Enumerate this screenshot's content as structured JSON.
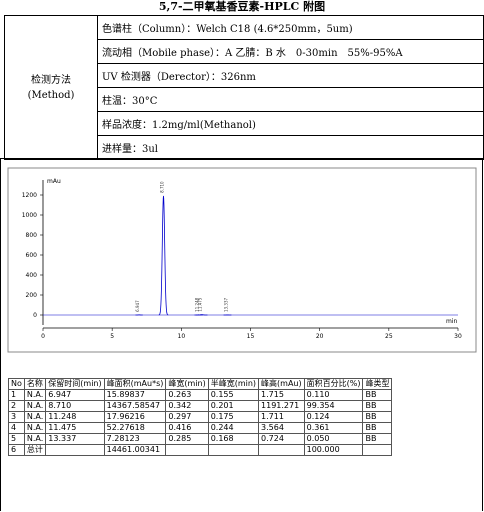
{
  "header": {
    "title": "5,7-二甲氧基香豆素-HPLC 附图"
  },
  "method": {
    "label": "检测方法",
    "label_en": "(Method)",
    "rows": [
      "色谱柱（Column）：Welch C18 (4.6*250mm，5um)",
      "流动相（Mobile phase）：A 乙腈：B 水　0-30min　55%-95%A",
      "UV 检测器（Derector）：326nm",
      "柱温：30°C",
      "样品浓度：1.2mg/ml(Methanol)",
      "进样量：3ul"
    ]
  },
  "chromatogram": {
    "type": "line",
    "ylabel": "mAu",
    "xlabel": "min",
    "x": [
      6.947,
      8.71,
      11.248,
      11.475,
      13.337
    ],
    "x_labels": [
      "6.947",
      "8.710",
      "11.248",
      "11.475",
      "13.337"
    ],
    "values": [
      1.715,
      1191.271,
      1.711,
      3.564,
      0.724
    ],
    "half_widths": [
      0.155,
      0.201,
      0.175,
      0.244,
      0.168
    ],
    "color": "#0000cc",
    "xlim": [
      0,
      30
    ],
    "xticks": [
      0,
      5,
      10,
      15,
      20,
      25,
      30
    ],
    "ylim": [
      -100,
      1350
    ],
    "yticks": [
      0,
      200,
      400,
      600,
      800,
      1000,
      1200
    ]
  },
  "table": {
    "header": [
      "No",
      "名称",
      "保留时间(min)",
      "峰面积(mAu*s)",
      "峰宽(min)",
      "半峰宽(min)",
      "峰高(mAu)",
      "面积百分比(%)",
      "峰类型"
    ],
    "rows": [
      [
        "1",
        "N.A.",
        "6.947",
        "15.89837",
        "0.263",
        "0.155",
        "1.715",
        "0.110",
        "BB"
      ],
      [
        "2",
        "N.A.",
        "8.710",
        "14367.58547",
        "0.342",
        "0.201",
        "1191.271",
        "99.354",
        "BB"
      ],
      [
        "3",
        "N.A.",
        "11.248",
        "17.96216",
        "0.297",
        "0.175",
        "1.711",
        "0.124",
        "BB"
      ],
      [
        "4",
        "N.A.",
        "11.475",
        "52.27618",
        "0.416",
        "0.244",
        "3.564",
        "0.361",
        "BB"
      ],
      [
        "5",
        "N.A.",
        "13.337",
        "7.28123",
        "0.285",
        "0.168",
        "0.724",
        "0.050",
        "BB"
      ],
      [
        "6",
        "总计",
        null,
        "14461.00341",
        null,
        null,
        null,
        "100.000",
        null
      ]
    ]
  }
}
